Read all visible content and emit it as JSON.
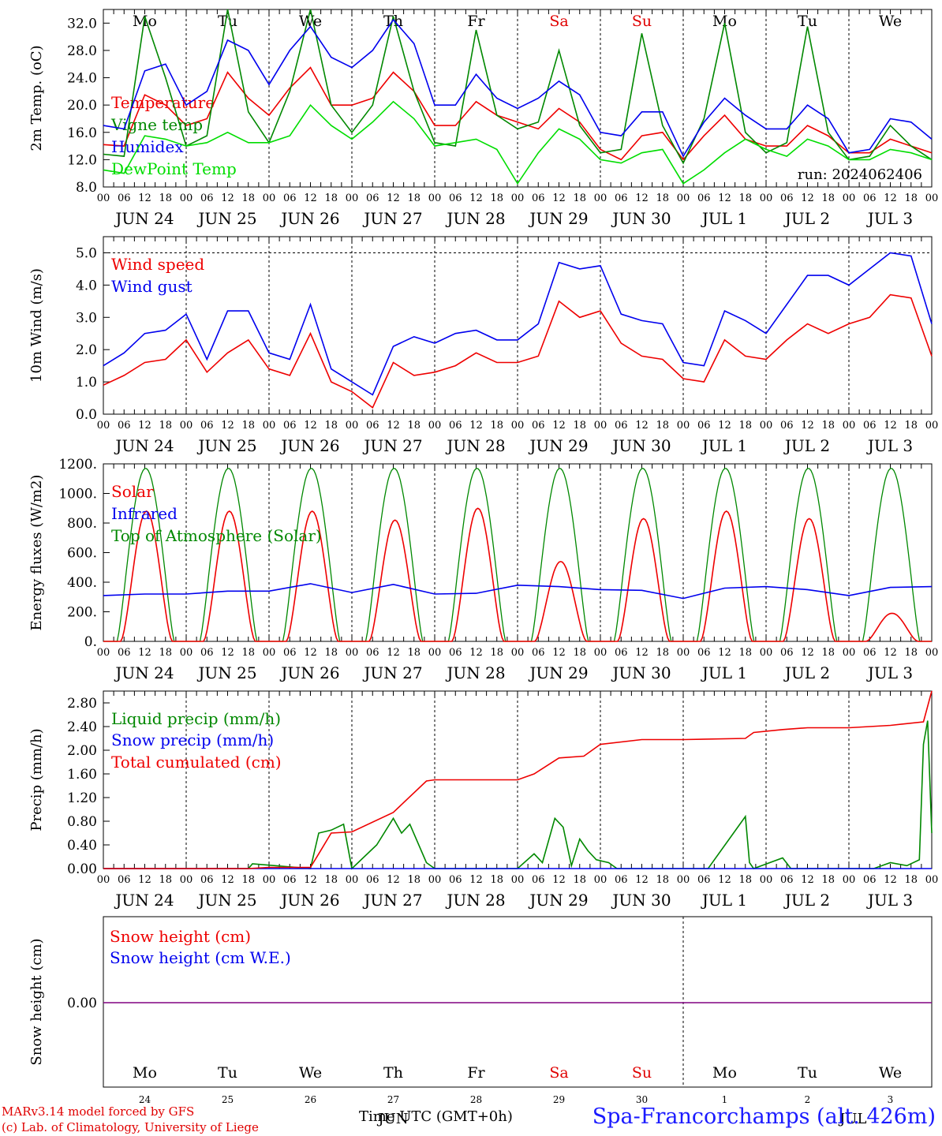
{
  "footer": {
    "model_line": "MARv3.14 model forced by GFS",
    "lab_line": "(c) Lab. of Climatology, University of Liege",
    "x_title": "Time UTC (GMT+0h)",
    "station": "Spa-Francorchamps (alt. 426m)"
  },
  "day_labels": {
    "dates": [
      "JUN 24",
      "JUN 25",
      "JUN 26",
      "JUN 27",
      "JUN 28",
      "JUN 29",
      "JUN 30",
      "JUL  1",
      "JUL  2",
      "JUL  3"
    ],
    "weekdays": [
      "Mo",
      "Tu",
      "We",
      "Th",
      "Fr",
      "Sa",
      "Su",
      "Mo",
      "Tu",
      "We"
    ],
    "weekend_color": "#e00000",
    "hour_ticks": [
      "00",
      "06",
      "12",
      "18"
    ],
    "bottom_day_numbers": [
      "24",
      "25",
      "26",
      "27",
      "28",
      "29",
      "30",
      "1",
      "2",
      "3"
    ],
    "bottom_month_labels": [
      "JUN",
      "JUL"
    ]
  },
  "chart_data": [
    {
      "type": "line",
      "name": "temperature",
      "ylabel": "2m Temp. (oC)",
      "ylim": [
        8,
        34
      ],
      "yticks": [
        "8.0",
        "12.0",
        "16.0",
        "20.0",
        "24.0",
        "28.0",
        "32.0"
      ],
      "annotation": "run: 2024062406",
      "x_days": [
        0,
        0.25,
        0.5,
        0.75,
        1,
        1.25,
        1.5,
        1.75,
        2,
        2.25,
        2.5,
        2.75,
        3,
        3.25,
        3.5,
        3.75,
        4,
        4.25,
        4.5,
        4.75,
        5,
        5.25,
        5.5,
        5.75,
        6,
        6.25,
        6.5,
        6.75,
        7,
        7.25,
        7.5,
        7.75,
        8,
        8.25,
        8.5,
        8.75,
        9,
        9.25,
        9.5,
        9.75,
        10
      ],
      "series": [
        {
          "name": "Temperature",
          "color": "#ee0000",
          "values": [
            14.2,
            14.0,
            21.5,
            20.0,
            17.0,
            18.0,
            24.8,
            21.0,
            18.5,
            22.5,
            25.5,
            20.0,
            20.0,
            21.0,
            24.8,
            22.0,
            17.0,
            17.0,
            20.5,
            18.5,
            17.5,
            16.5,
            19.5,
            17.5,
            13.5,
            12.0,
            15.5,
            16.0,
            12.0,
            15.5,
            18.5,
            15.0,
            14.0,
            14.0,
            17.0,
            15.5,
            13.0,
            13.0,
            15.0,
            14.0,
            13.0
          ]
        },
        {
          "name": "Vigne temp",
          "color": "#008800",
          "values": [
            12.8,
            12.5,
            33.0,
            24.0,
            14.0,
            15.5,
            34.0,
            19.0,
            14.5,
            22.0,
            34.0,
            20.0,
            16.0,
            20.0,
            33.0,
            22.0,
            14.5,
            14.0,
            31.0,
            18.5,
            16.5,
            17.5,
            28.0,
            17.0,
            13.0,
            13.5,
            30.5,
            17.0,
            11.5,
            18.0,
            32.0,
            16.0,
            13.0,
            14.5,
            31.5,
            16.0,
            12.0,
            12.5,
            17.0,
            14.0,
            12.0
          ]
        },
        {
          "name": "Humidex",
          "color": "#0000ee",
          "values": [
            17.0,
            16.5,
            25.0,
            26.0,
            20.0,
            22.0,
            29.5,
            28.0,
            23.0,
            28.0,
            31.5,
            27.0,
            25.5,
            28.0,
            32.5,
            29.0,
            20.0,
            20.0,
            24.5,
            21.0,
            19.5,
            21.0,
            23.5,
            21.5,
            16.0,
            15.5,
            19.0,
            19.0,
            12.5,
            17.5,
            21.0,
            18.5,
            16.5,
            16.5,
            20.0,
            18.0,
            13.0,
            13.5,
            18.0,
            17.5,
            15.0
          ]
        },
        {
          "name": "DewPoint Temp",
          "color": "#00dd00",
          "values": [
            10.5,
            10.0,
            15.5,
            15.0,
            14.0,
            14.5,
            16.0,
            14.5,
            14.5,
            15.5,
            20.0,
            17.0,
            15.0,
            17.5,
            20.5,
            18.0,
            14.0,
            14.5,
            15.0,
            13.5,
            8.5,
            13.0,
            16.5,
            15.0,
            12.0,
            11.5,
            13.0,
            13.5,
            8.5,
            10.5,
            13.0,
            15.0,
            13.5,
            12.5,
            15.0,
            14.0,
            12.0,
            12.0,
            13.5,
            13.0,
            12.0
          ]
        }
      ]
    },
    {
      "type": "line",
      "name": "wind",
      "ylabel": "10m Wind (m/s)",
      "ylim": [
        0,
        5.5
      ],
      "yticks": [
        "0.0",
        "1.0",
        "2.0",
        "3.0",
        "4.0",
        "5.0"
      ],
      "x_days": [
        0,
        0.25,
        0.5,
        0.75,
        1,
        1.25,
        1.5,
        1.75,
        2,
        2.25,
        2.5,
        2.75,
        3,
        3.25,
        3.5,
        3.75,
        4,
        4.25,
        4.5,
        4.75,
        5,
        5.25,
        5.5,
        5.75,
        6,
        6.25,
        6.5,
        6.75,
        7,
        7.25,
        7.5,
        7.75,
        8,
        8.25,
        8.5,
        8.75,
        9,
        9.25,
        9.5,
        9.75,
        10
      ],
      "series": [
        {
          "name": "Wind speed",
          "color": "#ee0000",
          "values": [
            0.9,
            1.2,
            1.6,
            1.7,
            2.3,
            1.3,
            1.9,
            2.3,
            1.4,
            1.2,
            2.5,
            1.0,
            0.7,
            0.2,
            1.6,
            1.2,
            1.3,
            1.5,
            1.9,
            1.6,
            1.6,
            1.8,
            3.5,
            3.0,
            3.2,
            2.2,
            1.8,
            1.7,
            1.1,
            1.0,
            2.3,
            1.8,
            1.7,
            2.3,
            2.8,
            2.5,
            2.8,
            3.0,
            3.7,
            3.6,
            1.8
          ]
        },
        {
          "name": "Wind gust",
          "color": "#0000ee",
          "values": [
            1.5,
            1.9,
            2.5,
            2.6,
            3.1,
            1.7,
            3.2,
            3.2,
            1.9,
            1.7,
            3.4,
            1.4,
            1.0,
            0.6,
            2.1,
            2.4,
            2.2,
            2.5,
            2.6,
            2.3,
            2.3,
            2.8,
            4.7,
            4.5,
            4.6,
            3.1,
            2.9,
            2.8,
            1.6,
            1.5,
            3.2,
            2.9,
            2.5,
            3.4,
            4.3,
            4.3,
            4.0,
            4.5,
            5.0,
            4.9,
            2.8
          ]
        }
      ]
    },
    {
      "type": "line",
      "name": "energy",
      "ylabel": "Energy fluxes (W/m2)",
      "ylim": [
        0,
        1200
      ],
      "yticks": [
        "0.",
        "200.",
        "400.",
        "600.",
        "800.",
        "1000.",
        "1200."
      ],
      "series": [
        {
          "name": "Solar",
          "color": "#ee0000",
          "peaks": [
            880,
            880,
            880,
            820,
            900,
            540,
            830,
            880,
            830,
            190
          ]
        },
        {
          "name": "Infrared",
          "color": "#0000ee",
          "x_days": [
            0,
            0.5,
            1,
            1.5,
            2,
            2.5,
            3,
            3.5,
            4,
            4.5,
            5,
            5.5,
            6,
            6.5,
            7,
            7.5,
            8,
            8.5,
            9,
            9.5,
            10
          ],
          "values": [
            310,
            320,
            320,
            340,
            340,
            390,
            330,
            385,
            320,
            325,
            380,
            370,
            350,
            345,
            290,
            360,
            370,
            350,
            310,
            365,
            370
          ]
        },
        {
          "name": "Top of Atmosphere (Solar)",
          "color": "#008800",
          "peak": 1170
        }
      ]
    },
    {
      "type": "line",
      "name": "precip",
      "ylabel": "Precip (mm/h)",
      "ylim": [
        0,
        3.0
      ],
      "yticks": [
        "0.00",
        "0.40",
        "0.80",
        "1.20",
        "1.60",
        "2.00",
        "2.40",
        "2.80"
      ],
      "series": [
        {
          "name": "Liquid precip (mm/h)",
          "color": "#008800",
          "x_days": [
            0,
            1.75,
            1.8,
            2.5,
            2.6,
            2.75,
            2.9,
            3,
            3.3,
            3.5,
            3.6,
            3.7,
            3.9,
            4,
            5,
            5.2,
            5.3,
            5.45,
            5.55,
            5.65,
            5.75,
            5.8,
            5.85,
            5.95,
            6.1,
            6.2,
            7.3,
            7.75,
            7.8,
            7.85,
            8.2,
            8.3,
            9.3,
            9.5,
            9.7,
            9.85,
            9.9,
            9.95,
            10
          ],
          "values": [
            0,
            0,
            0.08,
            0,
            0.6,
            0.65,
            0.75,
            0,
            0.4,
            0.85,
            0.6,
            0.75,
            0.1,
            0,
            0,
            0.25,
            0.1,
            0.85,
            0.7,
            0.05,
            0.5,
            0.4,
            0.3,
            0.15,
            0.1,
            0,
            0,
            0.88,
            0.1,
            0,
            0.18,
            0,
            0,
            0.1,
            0.05,
            0.15,
            2.1,
            2.5,
            0.6
          ]
        },
        {
          "name": "Snow precip (mm/h)",
          "color": "#0000ee",
          "x_days": [
            0,
            10
          ],
          "values": [
            0,
            0
          ]
        },
        {
          "name": "Total cumulated (cm)",
          "color": "#ee0000",
          "x_days": [
            0,
            1.75,
            2,
            2.5,
            2.6,
            2.75,
            3,
            3.5,
            3.9,
            4,
            5,
            5.2,
            5.5,
            5.8,
            6,
            6.5,
            7,
            7.75,
            7.85,
            8.2,
            8.5,
            9,
            9.5,
            9.9,
            10
          ],
          "values": [
            0,
            0,
            0.02,
            0.02,
            0.25,
            0.6,
            0.62,
            0.95,
            1.48,
            1.5,
            1.5,
            1.6,
            1.87,
            1.9,
            2.1,
            2.18,
            2.18,
            2.2,
            2.3,
            2.35,
            2.38,
            2.38,
            2.42,
            2.48,
            3.0
          ]
        }
      ]
    },
    {
      "type": "line",
      "name": "snow",
      "ylabel": "Snow height (cm)",
      "ytick_label": "0.00",
      "series": [
        {
          "name": "Snow height (cm)",
          "color": "#ee0000",
          "x_days": [
            0,
            10
          ],
          "values": [
            0,
            0
          ]
        },
        {
          "name": "Snow height (cm W.E.)",
          "color": "#0000ee",
          "x_days": [
            0,
            10
          ],
          "values": [
            0,
            0
          ]
        }
      ],
      "combined_line_color": "#800080"
    }
  ]
}
